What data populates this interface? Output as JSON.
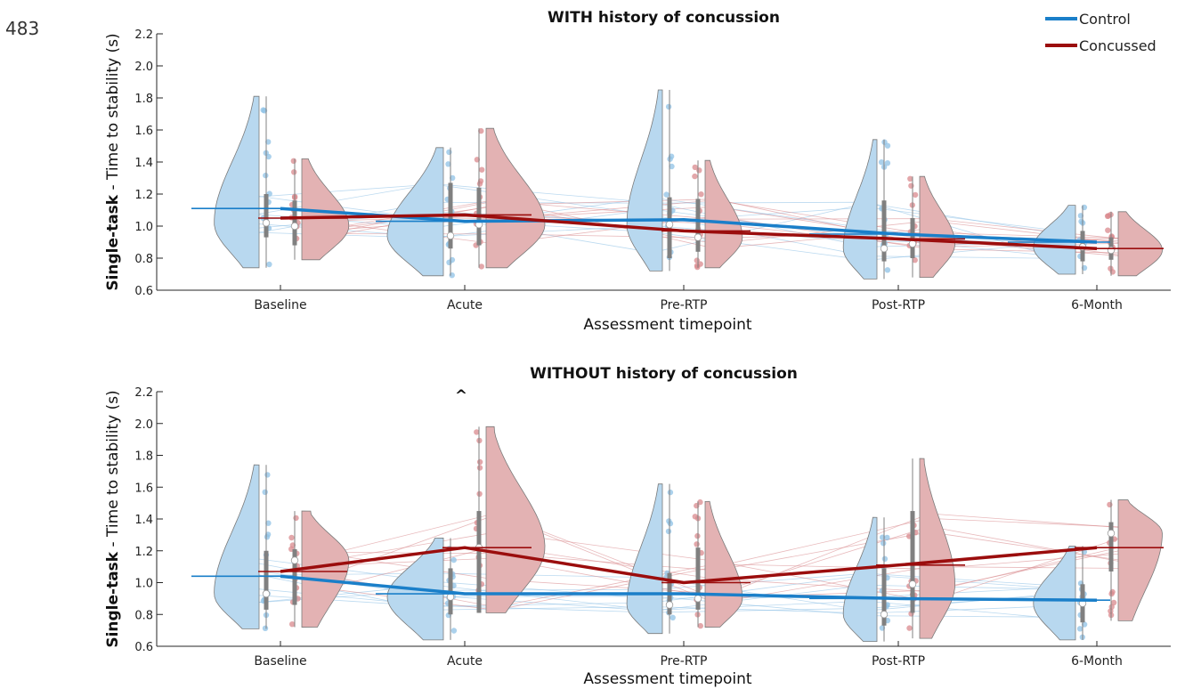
{
  "line_number": "483",
  "legend": {
    "items": [
      {
        "label": "Control",
        "color": "#1a7fc9"
      },
      {
        "label": "Concussed",
        "color": "#9b0d0d"
      }
    ],
    "placement": "top-right"
  },
  "colors": {
    "control_fill": "#b8d8ef",
    "control_dot": "#8fc1e6",
    "concussed_fill": "#e3b2b3",
    "concussed_dot": "#d98a8d",
    "box": "#808080",
    "violin_stroke": "#7a7a7a"
  },
  "chart_data": [
    {
      "type": "violin",
      "title": "WITH history of concussion",
      "ylabel_bold": "Single-task",
      "ylabel_rest": " - Time to stability (s)",
      "xlabel": "Assessment timepoint",
      "categories": [
        "Baseline",
        "Acute",
        "Pre-RTP",
        "Post-RTP",
        "6-Month"
      ],
      "ylim": [
        0.6,
        2.2
      ],
      "yticks": [
        "0.6",
        "0.8",
        "1.0",
        "1.2",
        "1.4",
        "1.6",
        "1.8",
        "2.0",
        "2.2"
      ],
      "series": [
        {
          "name": "Control",
          "means": [
            1.11,
            1.03,
            1.04,
            0.95,
            0.9
          ],
          "medians": [
            1.02,
            0.94,
            1.01,
            0.86,
            0.87
          ],
          "q1": [
            0.93,
            0.86,
            0.8,
            0.78,
            0.78
          ],
          "q3": [
            1.2,
            1.27,
            1.18,
            1.16,
            0.97
          ],
          "min": [
            0.74,
            0.69,
            0.72,
            0.67,
            0.7
          ],
          "max": [
            1.81,
            1.49,
            1.85,
            1.54,
            1.13
          ]
        },
        {
          "name": "Concussed",
          "means": [
            1.05,
            1.07,
            0.97,
            0.92,
            0.86
          ],
          "medians": [
            1.0,
            1.01,
            0.93,
            0.89,
            0.85
          ],
          "q1": [
            0.88,
            0.88,
            0.84,
            0.8,
            0.79
          ],
          "q3": [
            1.16,
            1.24,
            1.17,
            1.05,
            0.93
          ],
          "min": [
            0.79,
            0.74,
            0.74,
            0.68,
            0.69
          ],
          "max": [
            1.42,
            1.61,
            1.41,
            1.31,
            1.09
          ]
        }
      ],
      "annotations": []
    },
    {
      "type": "violin",
      "title": "WITHOUT history of concussion",
      "ylabel_bold": "Single-task",
      "ylabel_rest": " - Time to stability (s)",
      "xlabel": "Assessment timepoint",
      "categories": [
        "Baseline",
        "Acute",
        "Pre-RTP",
        "Post-RTP",
        "6-Month"
      ],
      "ylim": [
        0.6,
        2.2
      ],
      "yticks": [
        "0.6",
        "0.8",
        "1.0",
        "1.2",
        "1.4",
        "1.6",
        "1.8",
        "2.0",
        "2.2"
      ],
      "series": [
        {
          "name": "Control",
          "means": [
            1.04,
            0.93,
            0.93,
            0.9,
            0.89
          ],
          "medians": [
            0.93,
            0.91,
            0.86,
            0.8,
            0.87
          ],
          "q1": [
            0.83,
            0.8,
            0.8,
            0.73,
            0.75
          ],
          "q3": [
            1.2,
            1.09,
            1.06,
            1.09,
            0.99
          ],
          "min": [
            0.71,
            0.64,
            0.68,
            0.63,
            0.64
          ],
          "max": [
            1.74,
            1.28,
            1.62,
            1.41,
            1.23
          ]
        },
        {
          "name": "Concussed",
          "means": [
            1.07,
            1.22,
            1.0,
            1.11,
            1.22
          ],
          "medians": [
            1.14,
            1.22,
            0.9,
            0.99,
            1.31
          ],
          "q1": [
            0.86,
            0.81,
            0.83,
            0.81,
            1.07
          ],
          "q3": [
            1.21,
            1.45,
            1.22,
            1.45,
            1.38
          ],
          "min": [
            0.72,
            0.81,
            0.72,
            0.65,
            0.76
          ],
          "max": [
            1.45,
            1.98,
            1.51,
            1.78,
            1.52
          ]
        }
      ],
      "annotations": [
        {
          "category": "Acute",
          "text": "^"
        }
      ]
    }
  ]
}
